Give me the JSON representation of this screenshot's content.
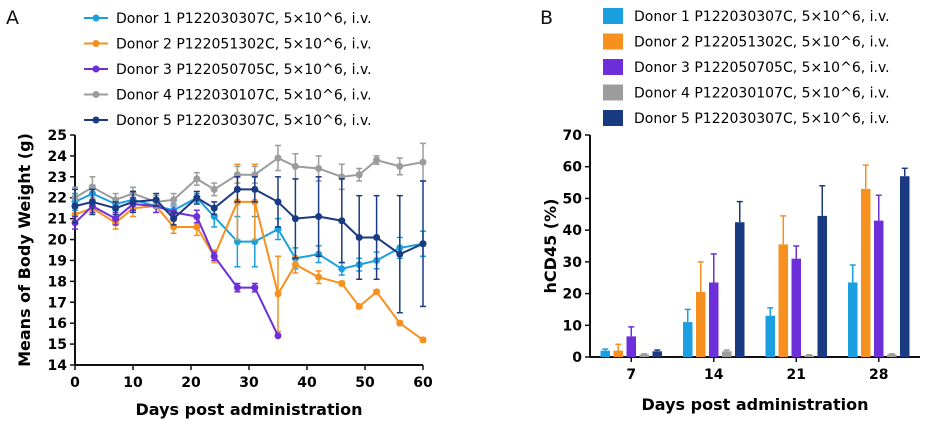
{
  "panel_labels": {
    "a": "A",
    "b": "B"
  },
  "series_colors": [
    "#1AA0E0",
    "#F7901E",
    "#6D2FD9",
    "#9C9C9C",
    "#1A3A82"
  ],
  "chart_data": [
    {
      "type": "line",
      "title": "",
      "xlabel": "Days post administration",
      "ylabel": "Means of Body Weight (g)",
      "xlim": [
        0,
        60
      ],
      "ylim": [
        14,
        25
      ],
      "xticks": [
        0,
        10,
        20,
        30,
        40,
        50,
        60
      ],
      "yticks": [
        14,
        15,
        16,
        17,
        18,
        19,
        20,
        21,
        22,
        23,
        24,
        25
      ],
      "legend_position": "top",
      "series": [
        {
          "name": "Donor 1 P122030307C, 5×10^6, i.v.",
          "x": [
            0,
            3,
            7,
            10,
            14,
            17,
            21,
            24,
            28,
            31,
            35,
            38,
            42,
            46,
            49,
            52,
            56,
            60
          ],
          "y": [
            21.8,
            22.2,
            21.7,
            21.9,
            21.6,
            21.4,
            22.0,
            21.1,
            19.9,
            19.9,
            20.5,
            19.1,
            19.3,
            18.6,
            18.8,
            19.0,
            19.6,
            19.8
          ],
          "err": [
            0.4,
            0.4,
            0.3,
            0.4,
            0.3,
            0.3,
            0.2,
            0.5,
            1.2,
            1.2,
            0.5,
            0.5,
            0.4,
            0.3,
            0.3,
            0.4,
            0.5,
            0.6
          ]
        },
        {
          "name": "Donor 2 P122051302C, 5×10^6, i.v.",
          "x": [
            0,
            3,
            7,
            10,
            14,
            17,
            21,
            24,
            28,
            31,
            35,
            38,
            42,
            46,
            49,
            52,
            56,
            60
          ],
          "y": [
            21.2,
            21.5,
            20.8,
            21.5,
            21.6,
            20.6,
            20.6,
            19.2,
            21.8,
            21.8,
            17.4,
            18.8,
            18.2,
            17.9,
            16.8,
            17.5,
            16.0,
            15.2
          ],
          "err": [
            0.3,
            0.3,
            0.3,
            0.4,
            0.3,
            0.3,
            0.4,
            0.3,
            1.8,
            1.8,
            1.8,
            0.4,
            0.3,
            0.1,
            0.1,
            0.1,
            0.1,
            0.1
          ]
        },
        {
          "name": "Donor 3 P122050705C, 5×10^6, i.v.",
          "x": [
            0,
            3,
            7,
            10,
            14,
            17,
            21,
            24,
            28,
            31,
            35
          ],
          "y": [
            20.8,
            21.6,
            21.0,
            21.7,
            21.6,
            21.3,
            21.1,
            19.2,
            17.7,
            17.7,
            15.4
          ],
          "err": [
            0.3,
            0.3,
            0.3,
            0.3,
            0.3,
            0.3,
            0.3,
            0.2,
            0.2,
            0.2,
            0.0
          ]
        },
        {
          "name": "Donor 4 P122030107C, 5×10^6, i.v.",
          "x": [
            0,
            3,
            7,
            10,
            14,
            17,
            21,
            24,
            28,
            31,
            35,
            38,
            42,
            46,
            49,
            52,
            56,
            60
          ],
          "y": [
            22.0,
            22.5,
            21.9,
            22.2,
            21.8,
            21.9,
            22.9,
            22.4,
            23.1,
            23.1,
            23.9,
            23.5,
            23.4,
            23.0,
            23.1,
            23.8,
            23.5,
            23.7
          ],
          "err": [
            0.5,
            0.5,
            0.3,
            0.3,
            0.3,
            0.3,
            0.3,
            0.3,
            0.4,
            0.4,
            0.6,
            0.6,
            0.6,
            0.6,
            0.3,
            0.2,
            0.4,
            0.9
          ]
        },
        {
          "name": "Donor 5 P122030307C, 5×10^6, i.v.",
          "x": [
            0,
            3,
            7,
            10,
            14,
            17,
            21,
            24,
            28,
            31,
            35,
            38,
            42,
            46,
            49,
            52,
            56,
            60
          ],
          "y": [
            21.6,
            21.8,
            21.5,
            21.8,
            21.9,
            21.0,
            22.0,
            21.5,
            22.4,
            22.4,
            21.8,
            21.0,
            21.1,
            20.9,
            20.1,
            20.1,
            19.3,
            19.8
          ],
          "err": [
            0.8,
            0.6,
            0.3,
            0.5,
            0.3,
            0.3,
            0.3,
            0.3,
            0.6,
            0.6,
            1.2,
            1.9,
            1.9,
            2.0,
            2.0,
            2.0,
            2.8,
            3.0
          ]
        }
      ]
    },
    {
      "type": "bar",
      "title": "",
      "xlabel": "Days post administration",
      "ylabel": "hCD45 (%)",
      "categories": [
        "7",
        "14",
        "21",
        "28"
      ],
      "ylim": [
        0,
        70
      ],
      "yticks": [
        0,
        10,
        20,
        30,
        40,
        50,
        60,
        70
      ],
      "legend_position": "top",
      "series": [
        {
          "name": "Donor 1 P122030307C, 5×10^6, i.v.",
          "values": [
            2.0,
            11.0,
            13.0,
            23.5
          ],
          "err": [
            0.5,
            4.0,
            2.5,
            5.5
          ]
        },
        {
          "name": "Donor 2 P122051302C, 5×10^6, i.v.",
          "values": [
            2.0,
            20.5,
            35.5,
            53.0
          ],
          "err": [
            2.0,
            9.5,
            9.0,
            7.5
          ]
        },
        {
          "name": "Donor 3 P122050705C, 5×10^6, i.v.",
          "values": [
            6.5,
            23.5,
            31.0,
            43.0
          ],
          "err": [
            3.0,
            9.0,
            4.0,
            8.0
          ]
        },
        {
          "name": "Donor 4 P122030107C, 5×10^6, i.v.",
          "values": [
            0.8,
            1.8,
            0.5,
            0.8
          ],
          "err": [
            0.2,
            0.4,
            0.2,
            0.2
          ]
        },
        {
          "name": "Donor 5 P122030307C, 5×10^6, i.v.",
          "values": [
            1.8,
            42.5,
            44.5,
            57.0
          ],
          "err": [
            0.4,
            6.5,
            9.5,
            2.5
          ]
        }
      ]
    }
  ]
}
